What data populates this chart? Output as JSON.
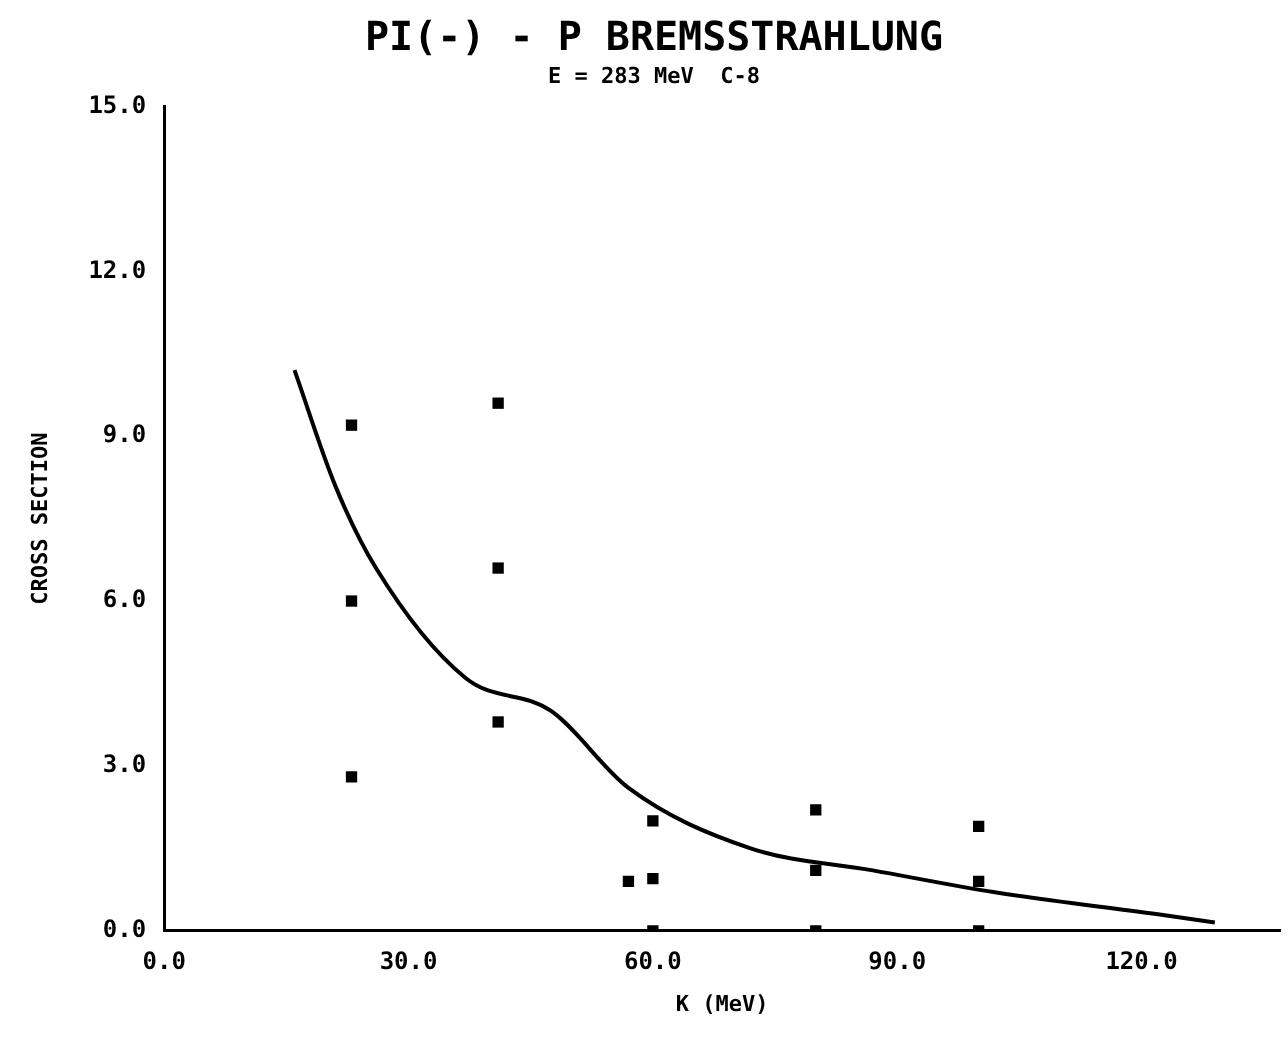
{
  "chart_data": {
    "type": "scatter",
    "title": "PI(-) - P BREMSSTRAHLUNG",
    "subtitle": "E = 283 MeV  C-8",
    "xlabel": "K (MeV)",
    "ylabel": "CROSS SECTION",
    "xlim": [
      0,
      137
    ],
    "ylim": [
      0,
      15
    ],
    "xticks": [
      {
        "value": 0,
        "label": "0.0"
      },
      {
        "value": 30,
        "label": "30.0"
      },
      {
        "value": 60,
        "label": "60.0"
      },
      {
        "value": 90,
        "label": "90.0"
      },
      {
        "value": 120,
        "label": "120.0"
      }
    ],
    "yticks": [
      {
        "value": 0,
        "label": "0.0"
      },
      {
        "value": 3,
        "label": "3.0"
      },
      {
        "value": 6,
        "label": "6.0"
      },
      {
        "value": 9,
        "label": "9.0"
      },
      {
        "value": 12,
        "label": "12.0"
      },
      {
        "value": 15,
        "label": "15.0"
      }
    ],
    "grid": false,
    "legend": false,
    "marker": "square",
    "series": [
      {
        "type": "scatter",
        "color": "#000000",
        "x": [
          23,
          23,
          23,
          41,
          41,
          41,
          57,
          60,
          60,
          60,
          80,
          80,
          80,
          100,
          100,
          100
        ],
        "values": [
          9.2,
          6.0,
          2.8,
          9.6,
          6.6,
          3.8,
          0.9,
          2.0,
          0.95,
          0,
          2.2,
          1.1,
          0,
          1.9,
          0.9,
          0
        ]
      },
      {
        "type": "line",
        "color": "#000000",
        "marker": "none",
        "x": [
          16,
          21,
          26,
          37,
          47.5,
          57,
          72,
          87,
          102,
          122,
          129
        ],
        "values": [
          10.2,
          8.1,
          6.6,
          4.6,
          4.0,
          2.6,
          1.5,
          1.1,
          0.7,
          0.3,
          0.15
        ]
      }
    ]
  }
}
